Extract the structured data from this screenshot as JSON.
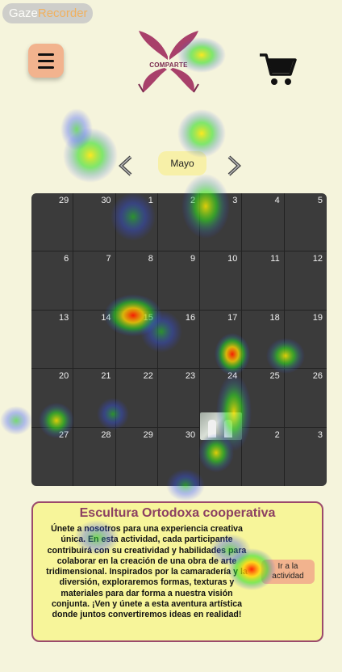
{
  "recorder": {
    "part1": "Gaze",
    "part2": "Recorder"
  },
  "header": {
    "logo_text": "COMPARTE",
    "menu_icon": "hamburger-icon",
    "cart_icon": "shopping-cart-icon"
  },
  "calendar": {
    "month": "Mayo",
    "prev_icon": "chevron-left-icon",
    "next_icon": "chevron-right-icon",
    "weeks": [
      [
        "29",
        "30",
        "1",
        "2",
        "3",
        "4",
        "5"
      ],
      [
        "6",
        "7",
        "8",
        "9",
        "10",
        "11",
        "12"
      ],
      [
        "13",
        "14",
        "15",
        "16",
        "17",
        "18",
        "19"
      ],
      [
        "20",
        "21",
        "22",
        "23",
        "24",
        "25",
        "26"
      ],
      [
        "27",
        "28",
        "29",
        "30",
        "31",
        "2",
        "3"
      ]
    ]
  },
  "activity": {
    "title": "Escultura Ortodoxa cooperativa",
    "description": "Únete a nosotros para una experiencia creativa única. En esta actividad, cada participante contribuirá con su creatividad y habilidades para colaborar en la creación de una obra de arte tridimensional. Inspirados por la camaradería y la diversión, exploraremos formas, texturas y materiales para dar forma a nuestra visión conjunta. ¡Ven y únete a esta aventura artística donde juntos convertiremos ideas en realidad!",
    "button_label": "Ir a la actividad"
  },
  "colors": {
    "background": "#f5f4dc",
    "accent": "#f2b38e",
    "brand": "#9b4a6c",
    "calendar_bg": "#3b3b3b",
    "card_bg": "#f7f59a"
  }
}
